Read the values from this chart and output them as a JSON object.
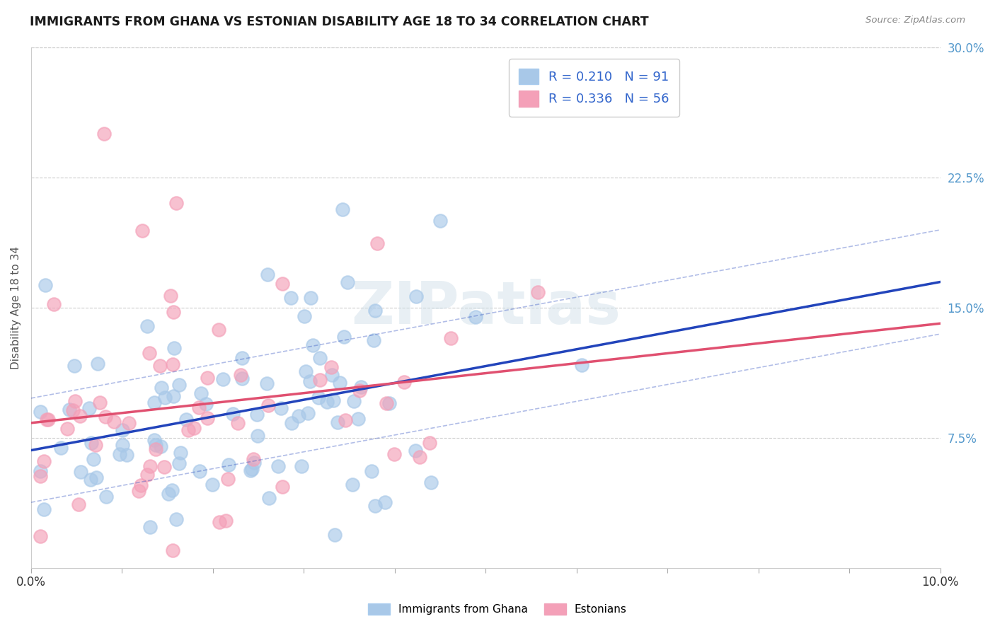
{
  "title": "IMMIGRANTS FROM GHANA VS ESTONIAN DISABILITY AGE 18 TO 34 CORRELATION CHART",
  "source": "Source: ZipAtlas.com",
  "ylabel": "Disability Age 18 to 34",
  "right_yticks": [
    "7.5%",
    "15.0%",
    "22.5%",
    "30.0%"
  ],
  "right_ytick_vals": [
    0.075,
    0.15,
    0.225,
    0.3
  ],
  "xlim": [
    0.0,
    0.1
  ],
  "ylim": [
    0.0,
    0.3
  ],
  "ghana_R": 0.21,
  "ghana_N": 91,
  "estonian_R": 0.336,
  "estonian_N": 56,
  "ghana_color": "#a8c8e8",
  "estonian_color": "#f4a0b8",
  "ghana_line_color": "#2244bb",
  "estonian_line_color": "#e05070",
  "watermark": "ZIPatlas",
  "legend_label_ghana": "Immigrants from Ghana",
  "legend_label_estonian": "Estonians",
  "background_color": "#ffffff",
  "grid_color": "#cccccc",
  "ghana_line_intercept": 0.068,
  "ghana_line_slope": 0.65,
  "estonian_line_intercept": 0.055,
  "estonian_line_slope": 1.35
}
